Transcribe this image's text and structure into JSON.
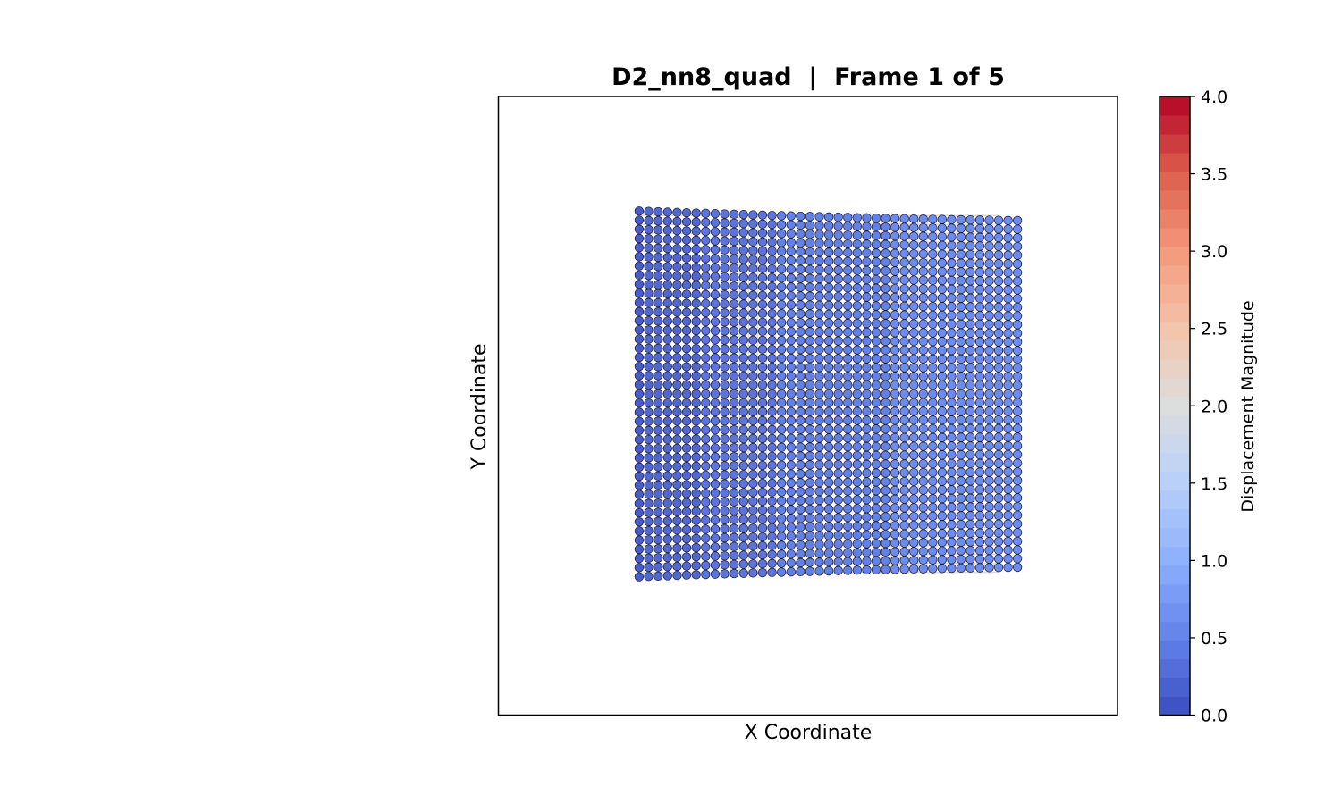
{
  "chart_data": {
    "type": "scatter",
    "title": "D2_nn8_quad  |  Frame 1 of 5",
    "xlabel": "X Coordinate",
    "ylabel": "Y Coordinate",
    "x_ticks_shown": false,
    "y_ticks_shown": false,
    "grid": false,
    "aspect": "equal",
    "xlim": [
      -0.3,
      1.0
    ],
    "ylim": [
      -0.3,
      1.0
    ],
    "grid_nodes": {
      "columns": 41,
      "rows": 41,
      "x_range": [
        0.0,
        0.75
      ],
      "y_range": [
        0.0,
        0.75
      ]
    },
    "deformation": {
      "max_displacement": 0.6,
      "left_edge_bulge": 0.015
    },
    "reference_mesh_color": "#cccccc",
    "colorbar": {
      "label": "Displacement Magnitude",
      "vmin": 0.0,
      "vmax": 4.0,
      "levels": 33,
      "ticks": [
        "0.0",
        "0.5",
        "1.0",
        "1.5",
        "2.0",
        "2.5",
        "3.0",
        "3.5",
        "4.0"
      ],
      "colormap": "coolwarm",
      "cmap_stops": [
        "#3b4cc0",
        "#6282ea",
        "#8db0fe",
        "#b8d0f9",
        "#dcdddd",
        "#f5c4ac",
        "#f49a7b",
        "#de604d",
        "#b40426"
      ]
    }
  }
}
